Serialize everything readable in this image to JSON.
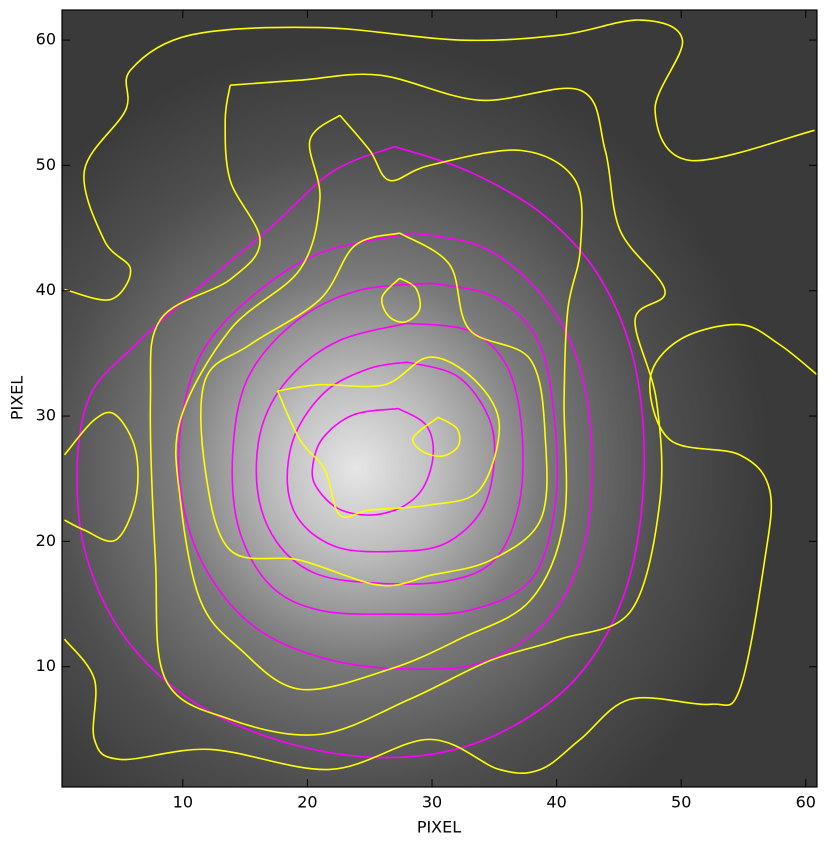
{
  "chart_data": {
    "type": "contour",
    "x_label": "PIXEL",
    "y_label": "PIXEL",
    "xlim": [
      0.3,
      60.9
    ],
    "ylim": [
      0.4,
      62.4
    ],
    "xticks": [
      10,
      20,
      30,
      40,
      50,
      60
    ],
    "yticks": [
      10,
      20,
      30,
      40,
      50,
      60
    ],
    "contours": [
      {
        "color": "#ff00ff",
        "x": [
          27.3,
          29.5,
          30.1,
          29.3,
          27.5,
          25,
          22.5,
          20.8,
          20.4,
          21.2,
          23.7,
          27.3
        ],
        "y": [
          30.6,
          29.3,
          27,
          24.3,
          22.7,
          22.1,
          22.6,
          24.2,
          25.8,
          28.2,
          30.1,
          30.6
        ]
      },
      {
        "color": "#ff00ff",
        "x": [
          28,
          32,
          34.5,
          35,
          34,
          31,
          27,
          22.5,
          19.5,
          18.4,
          19,
          21.5,
          25,
          28
        ],
        "y": [
          34.3,
          33.2,
          30,
          26.5,
          22.5,
          19.8,
          19.2,
          19.5,
          21.5,
          24.5,
          28.5,
          32,
          33.8,
          34.3
        ]
      },
      {
        "color": "#ff00ff",
        "x": [
          28,
          33,
          36,
          37.2,
          37,
          35,
          31,
          25,
          20.5,
          17.5,
          16,
          16.3,
          18.5,
          22.5,
          28
        ],
        "y": [
          37.4,
          36.8,
          34,
          29,
          23,
          18.5,
          16.8,
          16.7,
          17.5,
          20,
          24,
          29,
          33,
          36,
          37.4
        ]
      },
      {
        "color": "#ff00ff",
        "x": [
          30,
          35,
          38.5,
          39.8,
          39.9,
          38,
          33,
          27,
          21,
          17,
          14.5,
          14,
          15.2,
          19,
          24,
          30
        ],
        "y": [
          40.6,
          39.5,
          36,
          30,
          23,
          17,
          14.5,
          14.2,
          14.5,
          16.5,
          21,
          27,
          33,
          37.5,
          40,
          40.6
        ]
      },
      {
        "color": "#ff00ff",
        "x": [
          28.5,
          34,
          38.5,
          41.5,
          42.8,
          42.3,
          39.5,
          34.5,
          29,
          22,
          16,
          12,
          10,
          9.8,
          11.5,
          15.5,
          21,
          28.5
        ],
        "y": [
          44.6,
          43.5,
          40,
          35,
          28,
          20,
          14,
          10.5,
          9.8,
          10.5,
          13,
          17.5,
          23,
          29,
          35,
          39.5,
          43,
          44.6
        ]
      },
      {
        "color": "#ff00ff",
        "x": [
          27,
          33,
          39,
          43.5,
          46.3,
          47,
          45.5,
          41.5,
          35,
          28,
          20,
          12,
          6,
          2.5,
          1.5,
          2.5,
          6,
          11,
          17,
          22,
          27
        ],
        "y": [
          51.5,
          49.5,
          46,
          41,
          34,
          25,
          16,
          9,
          4.5,
          2.8,
          3.5,
          6.5,
          11.5,
          18,
          25,
          31.5,
          35.5,
          40,
          45,
          49.5,
          51.5
        ]
      },
      {
        "color": "#ffff00",
        "x": [
          27.4,
          28.7,
          29,
          27.8,
          26.5,
          26,
          27.4
        ],
        "y": [
          41,
          40.2,
          38.5,
          37.5,
          38,
          39.5,
          41
        ]
      },
      {
        "color": "#ffff00",
        "x": [
          30.5,
          32,
          32.1,
          30.8,
          29.2,
          28.5,
          30.5
        ],
        "y": [
          29.9,
          29,
          27.6,
          26.8,
          27.2,
          28.3,
          29.9
        ]
      },
      {
        "color": "#ffff00",
        "x": [
          17.6,
          21,
          26.2,
          29.8,
          33.4,
          35.4,
          33.8,
          29.8,
          25,
          22.6,
          21.4,
          19.4,
          17.6
        ],
        "y": [
          32,
          32.5,
          32.5,
          34.7,
          32.9,
          29.3,
          24.1,
          22.9,
          22.5,
          22.1,
          25.7,
          28.1,
          32
        ]
      },
      {
        "color": "#ffff00",
        "x": [
          27.4,
          31.4,
          33,
          37.9,
          39.1,
          38.7,
          34.7,
          29.9,
          25.8,
          19.4,
          13.8,
          11.8,
          11.8,
          15.4,
          21,
          23.8,
          27.4
        ],
        "y": [
          44.6,
          42.1,
          36.9,
          34.5,
          28.1,
          21.7,
          18.5,
          17.3,
          16.5,
          18.5,
          19.3,
          25.7,
          32.9,
          35.7,
          39.3,
          43.6,
          44.6
        ]
      },
      {
        "color": "#ffff00",
        "x": [
          22.6,
          25,
          26.6,
          29.8,
          37.1,
          41.5,
          41.9,
          40.9,
          40.6,
          40.6,
          37.9,
          32.2,
          26.6,
          19.4,
          14.6,
          11.4,
          9.8,
          9.8,
          13.8,
          19.4,
          21,
          20.2,
          22.6
        ],
        "y": [
          54,
          51.2,
          48.8,
          50,
          51.2,
          48.8,
          43.3,
          38.5,
          31.3,
          21.7,
          15.3,
          12.2,
          9.8,
          8.2,
          11.4,
          15.3,
          23.3,
          29.7,
          36.9,
          41.7,
          47.3,
          52,
          54
        ]
      },
      {
        "color": "#ffff00",
        "x": [
          13.8,
          19.4,
          25.8,
          33.8,
          41.9,
          43.9,
          45.1,
          48.7,
          46.3,
          48,
          48.3,
          46,
          40.3,
          34.7,
          28.2,
          21,
          13.8,
          8.6,
          7.8,
          7.4,
          8.2,
          13.8,
          16.2,
          13.8,
          13.4,
          13.8
        ],
        "y": [
          56.4,
          56.8,
          57.2,
          55.2,
          56,
          51.2,
          44.8,
          40,
          37.7,
          31.3,
          23.3,
          14.5,
          12.2,
          10.5,
          7.4,
          4.6,
          5.8,
          9,
          18.5,
          31.3,
          37.7,
          40.9,
          44,
          48.8,
          53.6,
          56.4
        ]
      },
      {
        "color": "#ffff00",
        "x": [
          60.7,
          50.7,
          47.9,
          50.1,
          46.7,
          40.3,
          32.2,
          21,
          10.6,
          5.8,
          5.4,
          2.1,
          3.7,
          5.8,
          4.2,
          0.5
        ],
        "y": [
          52.8,
          50.4,
          54.4,
          60,
          61.6,
          60.4,
          60,
          61,
          60.4,
          57.6,
          54.4,
          49.6,
          44,
          41.7,
          39.3,
          40.1
        ]
      },
      {
        "color": "#ffff00",
        "x": [
          60.9,
          57.9,
          54.7,
          49.9,
          47.5,
          49.1,
          54.7,
          57.1,
          56.7,
          54.7,
          52.3,
          45.9,
          41.9,
          38.7,
          35.4,
          29.8,
          21.8,
          12.2,
          5,
          2.9,
          2.9,
          0.5
        ],
        "y": [
          33.3,
          35.7,
          37.3,
          36.1,
          32.9,
          28.1,
          26.9,
          24.1,
          18.5,
          8.2,
          7,
          7.4,
          4.2,
          1.8,
          1.8,
          4.2,
          1.8,
          3.4,
          2.6,
          4.2,
          9,
          12.2
        ]
      },
      {
        "color": "#ffff00",
        "x": [
          0.5,
          2.9,
          4.6,
          6.2,
          6.2,
          4.6,
          2.1,
          0.5
        ],
        "y": [
          26.9,
          29.7,
          30.1,
          27.3,
          23.3,
          20.1,
          20.9,
          21.7
        ]
      }
    ]
  }
}
